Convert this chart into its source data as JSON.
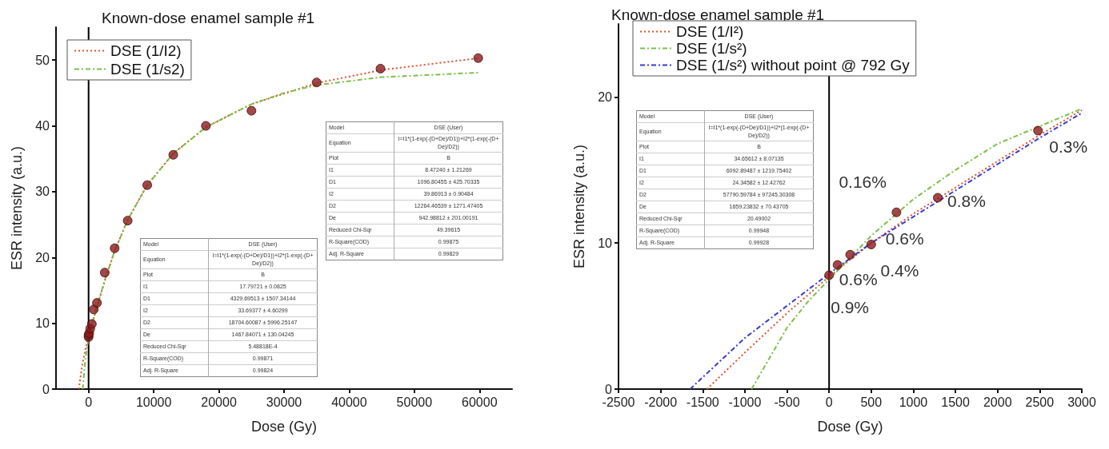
{
  "chart_data": [
    {
      "type": "line",
      "title": "Known-dose enamel sample #1",
      "xlabel": "Dose (Gy)",
      "ylabel": "ESR intensity (a.u.)",
      "xlim": [
        -5000,
        65000
      ],
      "xticks": [
        0,
        10000,
        20000,
        30000,
        40000,
        50000,
        60000
      ],
      "ylim": [
        0,
        55
      ],
      "yticks": [
        0,
        10,
        20,
        30,
        40,
        50
      ],
      "grid": false,
      "legend": "top left",
      "ref_lines": [
        {
          "axis": "x",
          "value": 0,
          "color": "#000000"
        }
      ],
      "series": [
        {
          "type": "scatter",
          "marker": "circle",
          "color": "#8b1a1a",
          "x": [
            0,
            0,
            100,
            250,
            500,
            792,
            1290,
            2480,
            4000,
            6000,
            9000,
            13000,
            18000,
            25000,
            35000,
            44800,
            59800
          ],
          "values": [
            7.9,
            8.2,
            8.5,
            9.2,
            9.9,
            12.1,
            13.1,
            17.7,
            21.4,
            25.6,
            31,
            35.6,
            40,
            42.3,
            46.6,
            48.7,
            50.3
          ]
        },
        {
          "name": "DSE (1/I2)",
          "marker": "none",
          "line_style": "dotted",
          "color": "#e0502a",
          "x": [
            -1500,
            -1000,
            -500,
            0,
            1000,
            2500,
            4000,
            6000,
            9000,
            13000,
            18000,
            25000,
            35000,
            45000,
            60000
          ],
          "values": [
            0,
            3.5,
            6,
            8,
            11.5,
            16.5,
            21,
            25.7,
            31,
            35.8,
            39.8,
            43.3,
            46.5,
            48.5,
            50.3
          ]
        },
        {
          "name": "DSE (1/s2)",
          "marker": "none",
          "line_style": "dashed",
          "color": "#7cc04a",
          "x": [
            -900,
            -500,
            0,
            1000,
            2500,
            4000,
            6000,
            9000,
            13000,
            18000,
            25000,
            30000,
            35000,
            45000,
            60000
          ],
          "values": [
            0,
            4.5,
            7.8,
            11.6,
            16.6,
            21,
            25.7,
            31,
            35.8,
            39.8,
            43.3,
            45,
            46.2,
            47.4,
            48.1
          ]
        }
      ],
      "annotations": [
        "Model\tDSE (User)\nEquation\tI=I1*(1-exp(-(D+De)/D1))+I2*(1-exp(-(D+De)/D2))\nPlot\tB\nI1\t17.79721 ± 0.0825\nD1\t4329.69513 ± 1507.34144\nI2\t33.69377 ± 4.60299\nD2\t18704.60087 ± 5996.25147\nDe\t1467.84071 ± 130.04245\nReduced Chi-Sqr\t5.48818E-4\nR-Square(COD)\t0.99871\nAdj. R-Square\t0.99824",
        "Model\tDSE (User)\nEquation\tI=I1*(1-exp(-(D+De)/D1))+I2*(1-exp(-(D+De)/D2))\nPlot\tB\nI1\t8.47240 ± 1.21269\nD1\t1096.80455 ± 425.70335\nI2\t39.86913 ± 0.90484\nD2\t12264.46539 ± 1271.47405\nDe\t942.98812 ± 201.00191\nReduced Chi-Sqr\t49.39615\nR-Square(COD)\t0.99875\nAdj. R-Square\t0.99829"
      ]
    },
    {
      "type": "line",
      "title": "Known-dose enamel sample #1",
      "xlabel": "Dose (Gy)",
      "ylabel": "ESR intensity (a.u.)",
      "xlim": [
        -2500,
        3000
      ],
      "xticks": [
        -2500,
        -2000,
        -1500,
        -1000,
        -500,
        0,
        500,
        1000,
        1500,
        2000,
        2500,
        3000
      ],
      "ylim": [
        0,
        25
      ],
      "yticks": [
        0,
        10,
        20
      ],
      "grid": false,
      "legend": "top left",
      "ref_lines": [
        {
          "axis": "x",
          "value": 0,
          "color": "#000000"
        }
      ],
      "series": [
        {
          "type": "scatter",
          "marker": "circle",
          "color": "#8b1a1a",
          "x": [
            0,
            100,
            250,
            500,
            800,
            1290,
            2480
          ],
          "values": [
            7.8,
            8.5,
            9.2,
            9.9,
            12.1,
            13.1,
            17.7
          ]
        },
        {
          "name": "DSE (1/I²)",
          "marker": "none",
          "line_style": "dotted",
          "color": "#e0502a",
          "x": [
            -1450,
            -1000,
            -500,
            0,
            500,
            1000,
            1500,
            2000,
            2500,
            3000
          ],
          "values": [
            0,
            2.5,
            5.2,
            7.7,
            10,
            12,
            13.8,
            15.6,
            17.4,
            19.1
          ]
        },
        {
          "name": "DSE (1/s²)",
          "marker": "none",
          "line_style": "dashed",
          "color": "#7cc04a",
          "x": [
            -920,
            -700,
            -500,
            -250,
            0,
            500,
            1000,
            1500,
            2000,
            2500,
            3000
          ],
          "values": [
            0,
            2.2,
            4.2,
            6,
            7.5,
            10.5,
            13,
            15,
            16.8,
            18,
            19.2
          ]
        },
        {
          "name": "DSE (1/s²) without point @ 792 Gy",
          "marker": "none",
          "line_style": "dashed",
          "color": "#3a3ad0",
          "x": [
            -1650,
            -1000,
            -500,
            0,
            500,
            1000,
            1500,
            2000,
            2500,
            3000
          ],
          "values": [
            0,
            3.5,
            5.7,
            7.9,
            10,
            11.8,
            13.6,
            15.4,
            17.2,
            18.9
          ]
        }
      ],
      "annotations": [
        {
          "text": "0.9%",
          "x": 0,
          "y": 7.8
        },
        {
          "text": "0.6%",
          "x": 100,
          "y": 8.5
        },
        {
          "text": "0.4%",
          "x": 250,
          "y": 9.2
        },
        {
          "text": "0.6%",
          "x": 500,
          "y": 9.9
        },
        {
          "text": "0.16%",
          "x": 800,
          "y": 12.1
        },
        {
          "text": "0.8%",
          "x": 1290,
          "y": 13.1
        },
        {
          "text": "0.3%",
          "x": 2480,
          "y": 17.7
        },
        "Model\tDSE (User)\nEquation\tI=I1*(1-exp(-(D+De)/D1))+I2*(1-exp(-(D+De)/D2))\nPlot\tB\nI1\t34.65612 ± 8.07135\nD1\t6092.89487 ± 1219.75402\nI2\t24.34582 ± 12.42762\nD2\t57790.59784 ± 97245.30308\nDe\t1659.23832 ± 70.43705\nReduced Chi-Sqr\t20.49002\nR-Square(COD)\t0.99948\nAdj. R-Square\t0.99928"
      ]
    }
  ]
}
